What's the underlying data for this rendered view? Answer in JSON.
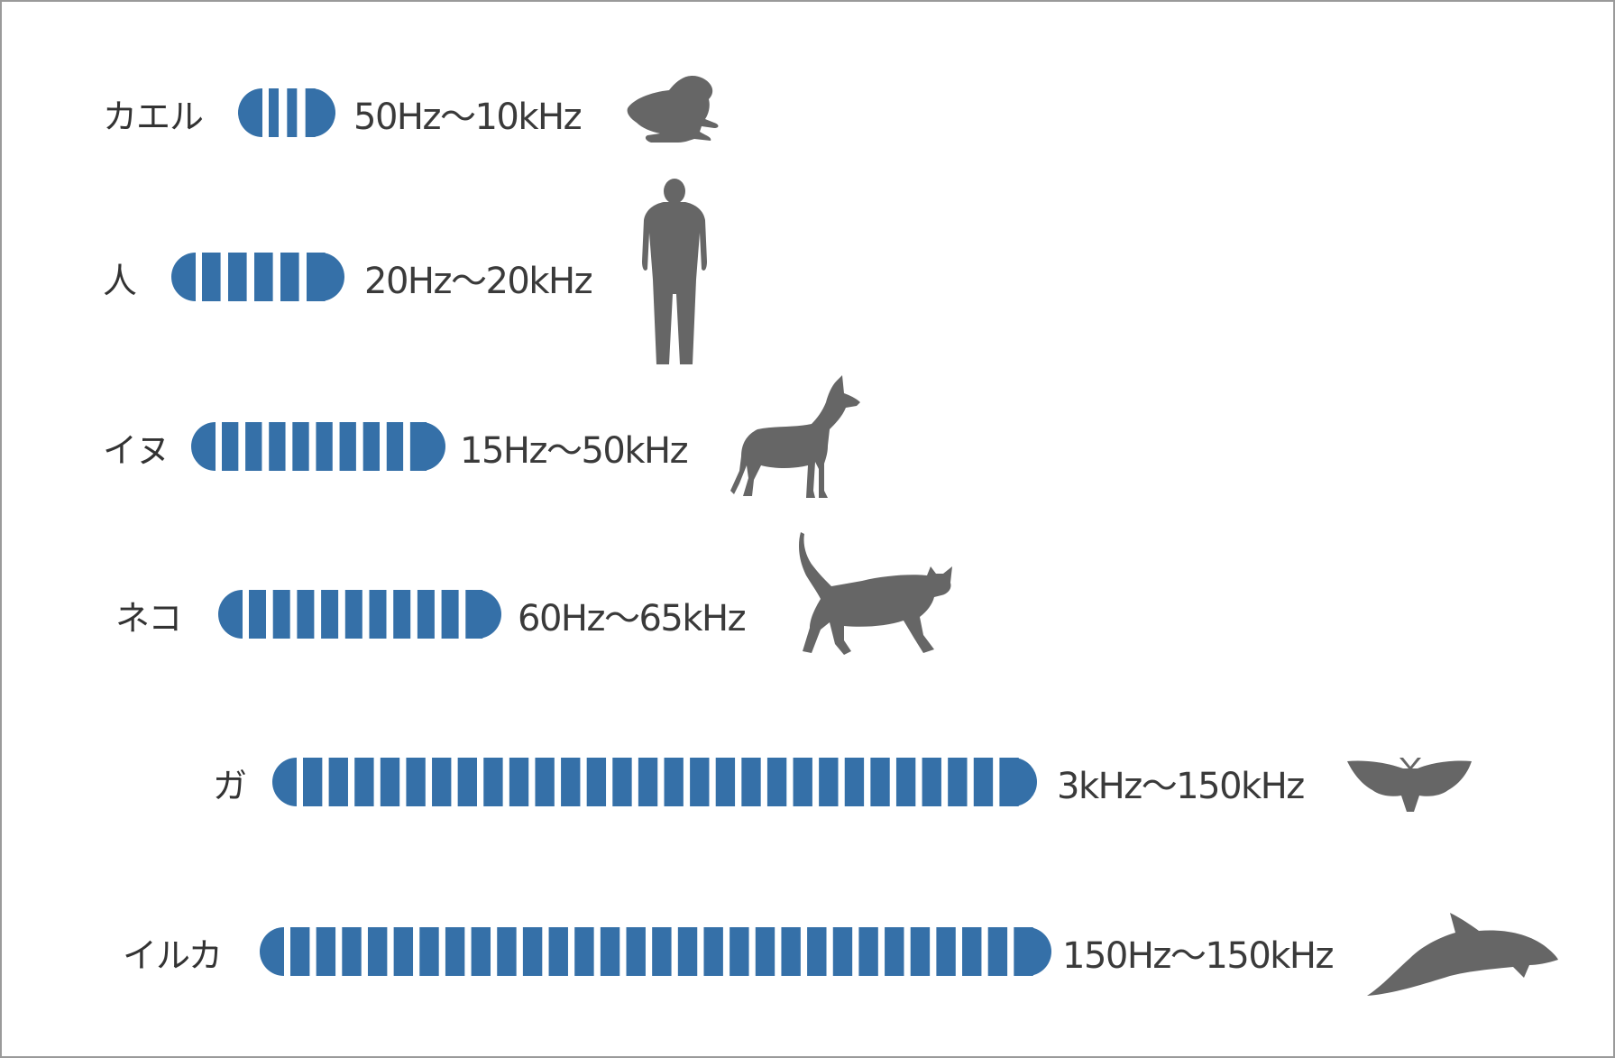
{
  "accent_color": "#3570a8",
  "silhouette_color": "#666666",
  "animals": [
    {
      "name": "カエル",
      "range": "50Hz〜10kHz",
      "stripes": 3,
      "icon": "frog-icon"
    },
    {
      "name": "人",
      "range": "20Hz〜20kHz",
      "stripes": 5,
      "icon": "human-icon"
    },
    {
      "name": "イヌ",
      "range": "15Hz〜50kHz",
      "stripes": 9,
      "icon": "dog-icon"
    },
    {
      "name": "ネコ",
      "range": "60Hz〜65kHz",
      "stripes": 10,
      "icon": "cat-icon"
    },
    {
      "name": "ガ",
      "range": "3kHz〜150kHz",
      "stripes": 28,
      "icon": "moth-icon"
    },
    {
      "name": "イルカ",
      "range": "150Hz〜150kHz",
      "stripes": 29,
      "icon": "dolphin-icon"
    }
  ]
}
